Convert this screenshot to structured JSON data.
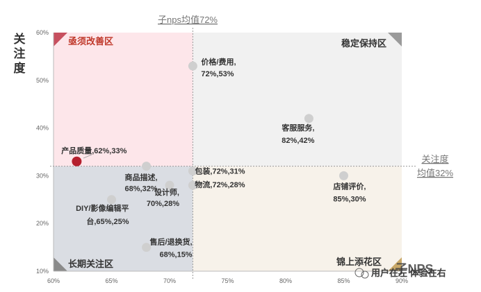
{
  "chart_data": {
    "type": "scatter",
    "title": "",
    "xlabel": "子nps均值72%",
    "ylabel": "关注度",
    "xlim": [
      60,
      90
    ],
    "ylim": [
      10,
      60
    ],
    "x_ticks": [
      "60%",
      "65%",
      "70%",
      "75%",
      "80%",
      "85%",
      "90%"
    ],
    "y_ticks": [
      "10%",
      "20%",
      "30%",
      "40%",
      "50%",
      "60%"
    ],
    "grid": false,
    "reference_lines": [
      {
        "axis": "x",
        "value": 72,
        "label": "子nps均值72%"
      },
      {
        "axis": "y",
        "value": 32,
        "label_line1": "关注度",
        "label_line2": "均值32%"
      }
    ],
    "quadrants": [
      {
        "name": "亟须改善区",
        "position": "top-left",
        "color": "#c0392b"
      },
      {
        "name": "稳定保持区",
        "position": "top-right",
        "color": "#333333"
      },
      {
        "name": "长期关注区",
        "position": "bottom-left",
        "color": "#333333"
      },
      {
        "name": "锦上添花区",
        "position": "bottom-right",
        "color": "#333333"
      }
    ],
    "points": [
      {
        "label_lines": [
          "价格/费用,",
          "72%,53%"
        ],
        "x": 72,
        "y": 53,
        "highlight": false
      },
      {
        "label_lines": [
          "客服服务,",
          "82%,42%"
        ],
        "x": 82,
        "y": 42,
        "highlight": false
      },
      {
        "label_lines": [
          "产品质量,62%,33%"
        ],
        "x": 62,
        "y": 33,
        "highlight": true
      },
      {
        "label_lines": [
          "商品描述,",
          "68%,32%"
        ],
        "x": 68,
        "y": 32,
        "highlight": false
      },
      {
        "label_lines": [
          "包装,72%,31%"
        ],
        "x": 72,
        "y": 31,
        "highlight": false
      },
      {
        "label_lines": [
          "店铺评价,",
          "85%,30%"
        ],
        "x": 85,
        "y": 30,
        "highlight": false
      },
      {
        "label_lines": [
          "物流,72%,28%"
        ],
        "x": 72,
        "y": 28,
        "highlight": false
      },
      {
        "label_lines": [
          "设计师,",
          "70%,28%"
        ],
        "x": 70,
        "y": 28,
        "highlight": false
      },
      {
        "label_lines": [
          "DIY/影像编辑平",
          "台,65%,25%"
        ],
        "x": 65,
        "y": 25,
        "highlight": false
      },
      {
        "label_lines": [
          "售后/退换货,",
          "68%,15%"
        ],
        "x": 68,
        "y": 15,
        "highlight": false
      }
    ],
    "colors": {
      "point": "#cfcfcf",
      "highlight": "#b5202e",
      "quad_top_left": "#fde6ea",
      "quad_top_right": "#f1f1f1",
      "quad_bottom_left": "#dadde3",
      "quad_bottom_right": "#f7f2ea"
    }
  },
  "watermark": {
    "text": "用户在左 体验在右",
    "corner_text": "子NPS"
  }
}
